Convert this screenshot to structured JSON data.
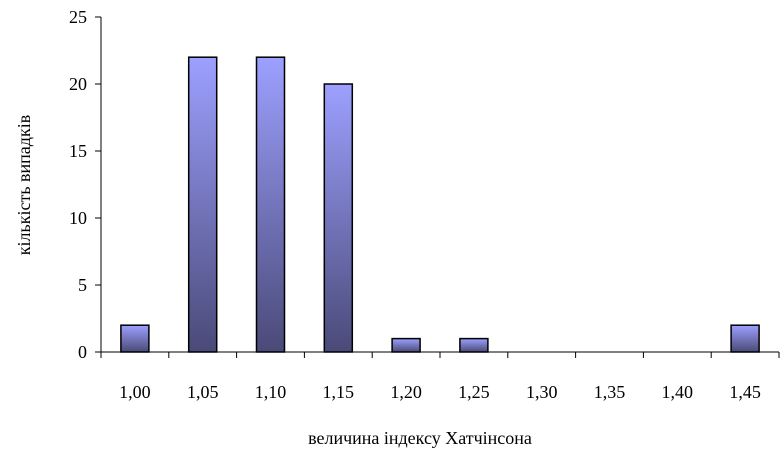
{
  "chart_data": {
    "type": "bar",
    "categories": [
      "1,00",
      "1,05",
      "1,10",
      "1,15",
      "1,20",
      "1,25",
      "1,30",
      "1,35",
      "1,40",
      "1,45"
    ],
    "values": [
      2,
      22,
      22,
      20,
      1,
      1,
      0,
      0,
      0,
      2
    ],
    "title": "",
    "xlabel": "величина індексу Хатчінсона",
    "ylabel": "кількість випадків",
    "ylim": [
      0,
      25
    ],
    "yticks": [
      0,
      5,
      10,
      15,
      20,
      25
    ],
    "grid": false,
    "legend": "none",
    "colors": {
      "bar_light": "#9da0ff",
      "bar_dark": "#4a4a78",
      "stroke": "#000000"
    }
  }
}
